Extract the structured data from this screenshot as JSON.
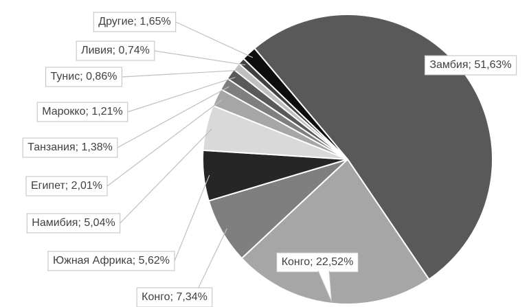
{
  "chart_data": {
    "type": "pie",
    "labels": [
      "Замбия; 51,63%",
      "Конго; 22,52%",
      "Конго; 7,34%",
      "Южная Африка; 5,62%",
      "Намибия; 5,04%",
      "Египет; 2,01%",
      "Танзания; 1,38%",
      "Марокко; 1,21%",
      "Тунис; 0,86%",
      "Ливия; 0,74%",
      "Другие; 1,65%"
    ],
    "values": [
      51.63,
      22.52,
      7.34,
      5.62,
      5.04,
      2.01,
      1.38,
      1.21,
      0.86,
      0.74,
      1.65
    ],
    "colors": [
      "#595959",
      "#a6a6a6",
      "#7f7f7f",
      "#262626",
      "#d9d9d9",
      "#a6a6a6",
      "#7f7f7f",
      "#595959",
      "#bfbfbf",
      "#404040",
      "#0d0d0d"
    ]
  }
}
